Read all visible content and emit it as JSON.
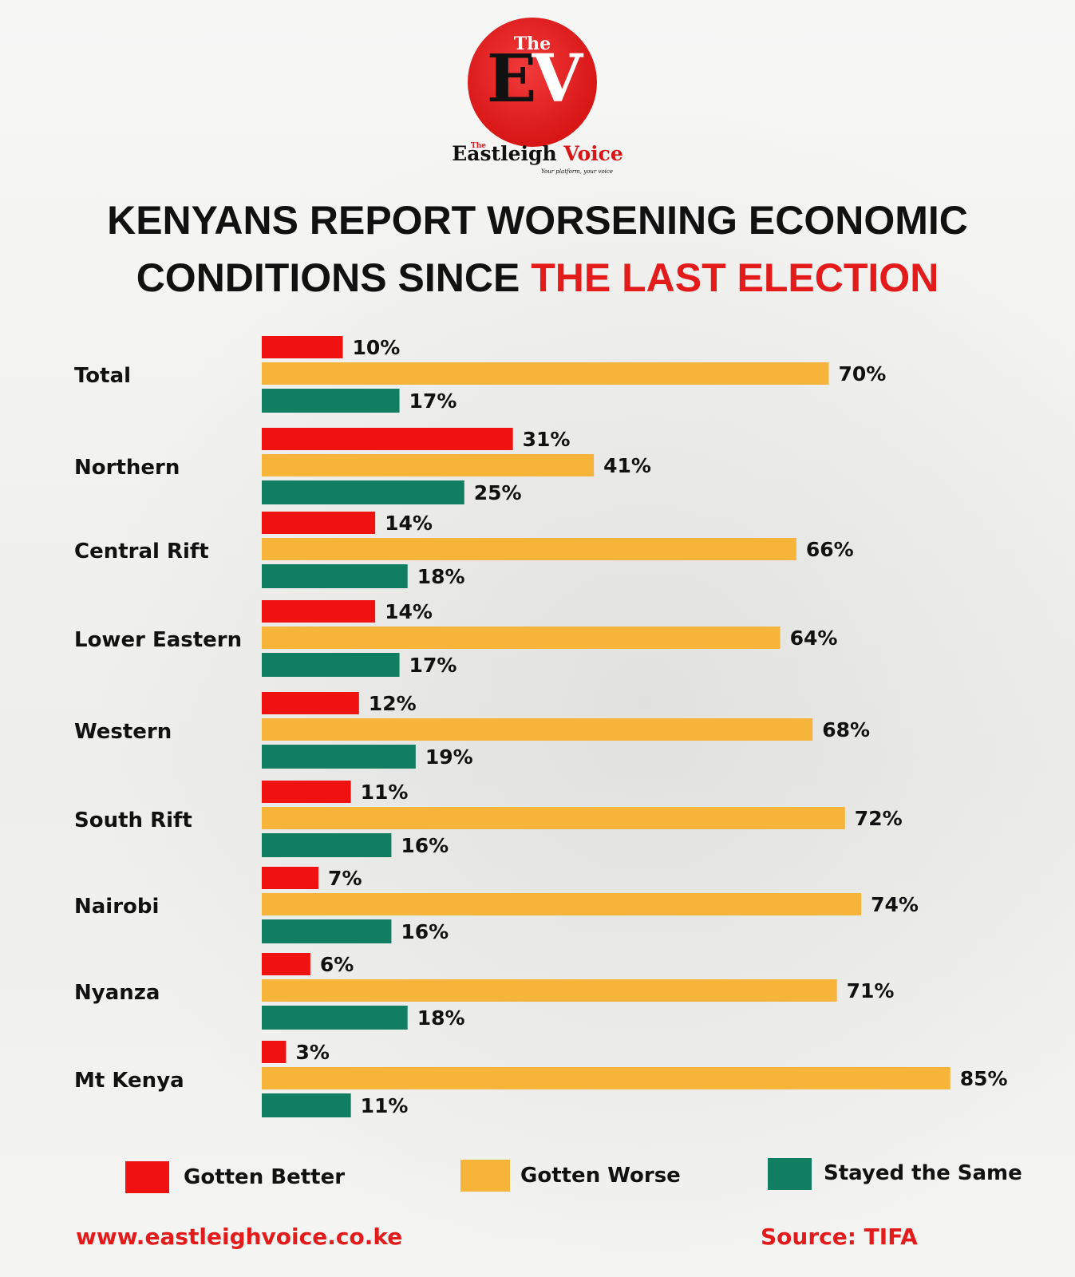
{
  "brand": {
    "logo_the": "The",
    "logo_e": "E",
    "logo_v": "V",
    "wordmark_the": "The",
    "wordmark_main": "Eastleigh",
    "wordmark_accent": "Voice",
    "tagline": "Your platform, your voice"
  },
  "heading": {
    "line1": "KENYANS REPORT WORSENING ECONOMIC",
    "line2_plain": "CONDITIONS SINCE ",
    "line2_highlight": "THE LAST ELECTION"
  },
  "chart_data": {
    "type": "bar",
    "orientation": "horizontal",
    "categories": [
      "Total",
      "Northern",
      "Central Rift",
      "Lower Eastern",
      "Western",
      "South Rift",
      "Nairobi",
      "Nyanza",
      "Mt Kenya"
    ],
    "series": [
      {
        "name": "Gotten Better",
        "color": "#f01111",
        "values": [
          10,
          31,
          14,
          14,
          12,
          11,
          7,
          6,
          3
        ]
      },
      {
        "name": "Gotten Worse",
        "color": "#f7b43b",
        "values": [
          70,
          41,
          66,
          64,
          68,
          72,
          74,
          71,
          85
        ]
      },
      {
        "name": "Stayed the Same",
        "color": "#117d61",
        "values": [
          17,
          25,
          18,
          17,
          19,
          16,
          16,
          18,
          11
        ]
      }
    ],
    "value_suffix": "%",
    "xlim": [
      0,
      100
    ],
    "grid": false,
    "legend_position": "bottom"
  },
  "footer": {
    "url": "www.eastleighvoice.co.ke",
    "source": "Source: TIFA"
  }
}
